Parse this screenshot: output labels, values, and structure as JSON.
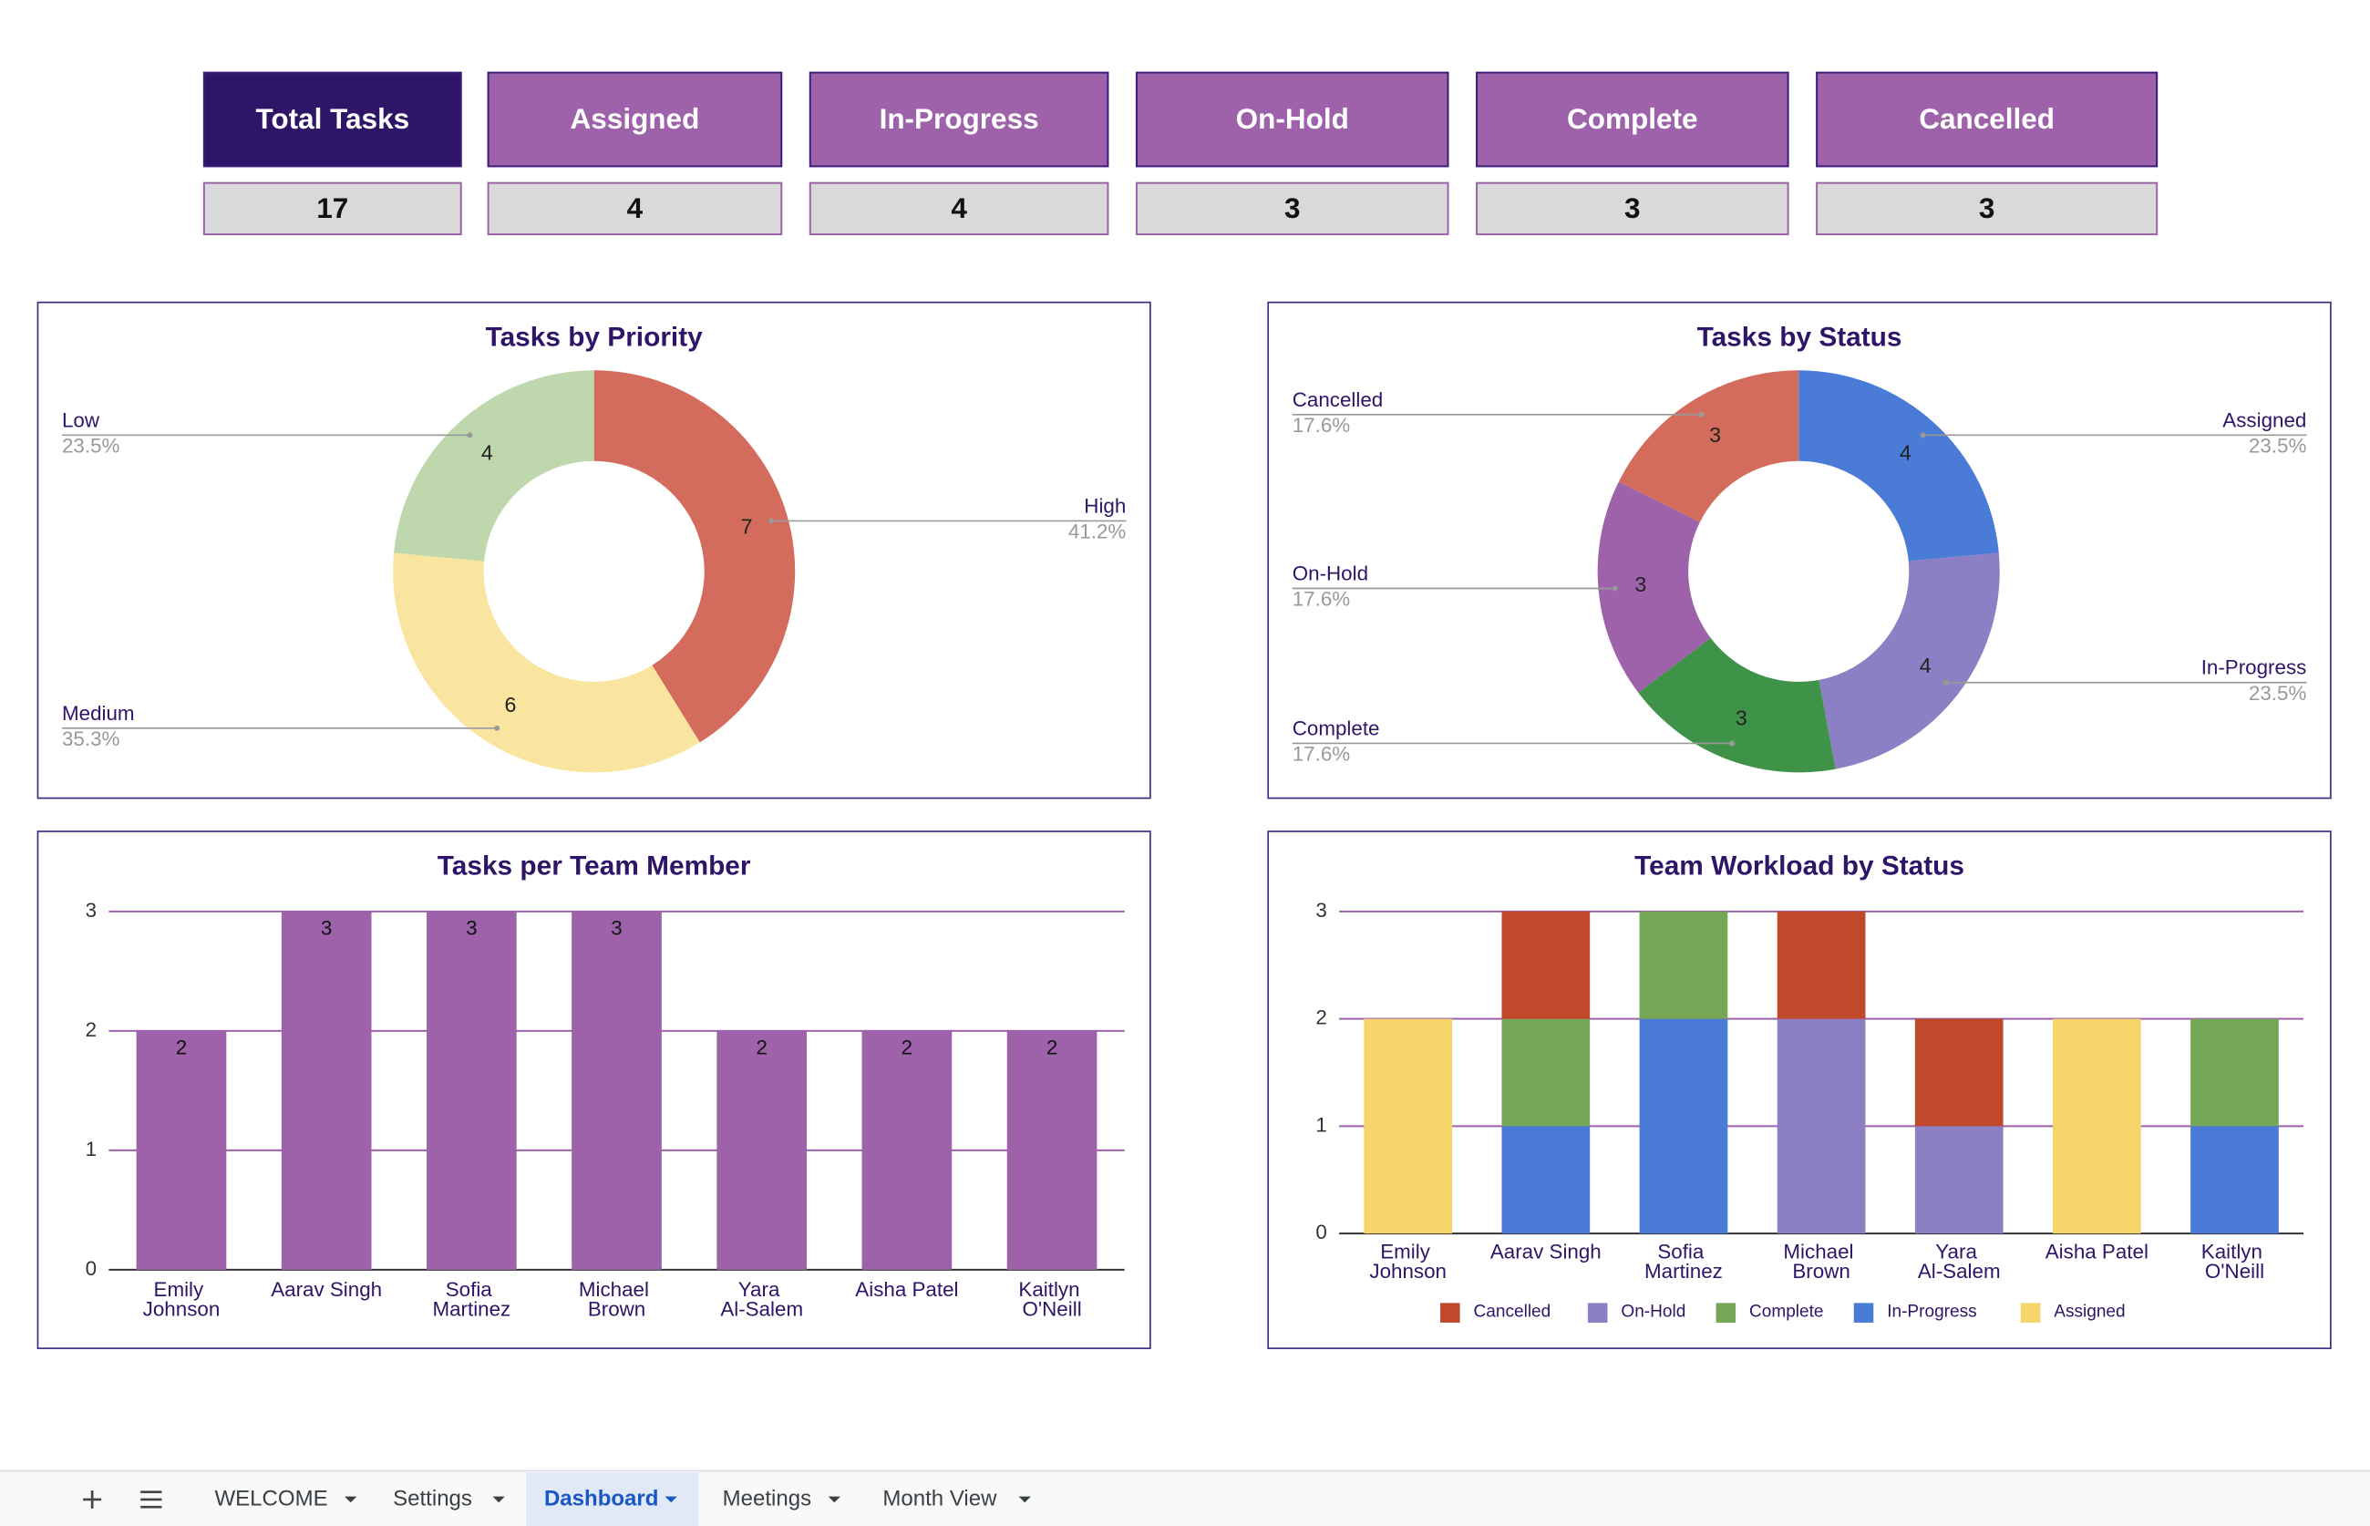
{
  "kpis": [
    {
      "label": "Total Tasks",
      "value": 17
    },
    {
      "label": "Assigned",
      "value": 4
    },
    {
      "label": "In-Progress",
      "value": 4
    },
    {
      "label": "On-Hold",
      "value": 3
    },
    {
      "label": "Complete",
      "value": 3
    },
    {
      "label": "Cancelled",
      "value": 3
    }
  ],
  "chart_data": [
    {
      "type": "pie",
      "title": "Tasks by Priority",
      "categories": [
        "High",
        "Medium",
        "Low"
      ],
      "values": [
        7,
        6,
        4
      ],
      "percent_labels": [
        "41.2%",
        "35.3%",
        "23.5%"
      ],
      "colors": [
        "#d46c5e",
        "#f9e4a0",
        "#bed7ad"
      ]
    },
    {
      "type": "pie",
      "title": "Tasks by Status",
      "categories": [
        "Assigned",
        "In-Progress",
        "Complete",
        "On-Hold",
        "Cancelled"
      ],
      "values": [
        4,
        4,
        3,
        3,
        3
      ],
      "percent_labels": [
        "23.5%",
        "23.5%",
        "17.6%",
        "17.6%",
        "17.6%"
      ],
      "colors": [
        "#4a7bd6",
        "#8c7fc3",
        "#3f9349",
        "#9e62ab",
        "#d46c5e"
      ]
    },
    {
      "type": "bar",
      "title": "Tasks per Team Member",
      "categories": [
        "Emily Johnson",
        "Aarav Singh",
        "Sofia Martinez",
        "Michael Brown",
        "Yara Al-Salem",
        "Aisha Patel",
        "Kaitlyn O'Neill"
      ],
      "values": [
        2,
        3,
        3,
        3,
        2,
        2,
        2
      ],
      "color": "#9e62ab",
      "ylim": [
        0,
        3
      ],
      "yticks": [
        0,
        1,
        2,
        3
      ],
      "grid": true
    },
    {
      "type": "stacked_bar",
      "title": "Team Workload by Status",
      "categories": [
        "Emily Johnson",
        "Aarav Singh",
        "Sofia Martinez",
        "Michael Brown",
        "Yara Al-Salem",
        "Aisha Patel",
        "Kaitlyn O'Neill"
      ],
      "series": [
        {
          "name": "Cancelled",
          "color": "#c0492c",
          "values": [
            0,
            1,
            0,
            1,
            1,
            0,
            0
          ]
        },
        {
          "name": "On-Hold",
          "color": "#8c7fc3",
          "values": [
            0,
            0,
            0,
            2,
            1,
            0,
            0
          ]
        },
        {
          "name": "Complete",
          "color": "#76a757",
          "values": [
            0,
            1,
            1,
            0,
            0,
            0,
            1
          ]
        },
        {
          "name": "In-Progress",
          "color": "#4a7bd6",
          "values": [
            0,
            1,
            2,
            0,
            0,
            0,
            1
          ]
        },
        {
          "name": "Assigned",
          "color": "#f6d66b",
          "values": [
            2,
            0,
            0,
            0,
            0,
            2,
            0
          ]
        }
      ],
      "ylim": [
        0,
        3
      ],
      "yticks": [
        0,
        1,
        2,
        3
      ],
      "grid": true,
      "legend": "bottom"
    }
  ],
  "tabs": [
    "WELCOME",
    "Settings",
    "Dashboard",
    "Meetings",
    "Month View"
  ],
  "active_tab_index": 2
}
